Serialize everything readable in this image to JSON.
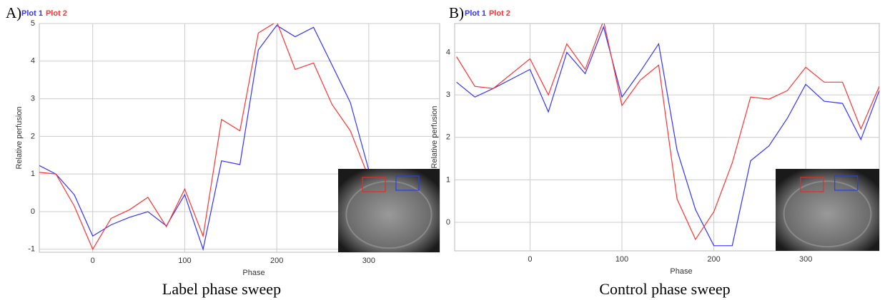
{
  "chart_data": [
    {
      "type": "line",
      "panel": "A)",
      "caption": "Label  phase  sweep",
      "x_label": "Phase",
      "y_label": "Relative perfusion",
      "x": [
        -60,
        -40,
        -20,
        0,
        20,
        40,
        60,
        80,
        100,
        120,
        140,
        160,
        180,
        200,
        220,
        240,
        260,
        280,
        300
      ],
      "series": [
        {
          "name": "Plot 1",
          "color": "#3333ff",
          "values": [
            1.25,
            1.0,
            0.45,
            -0.65,
            -0.35,
            -0.15,
            0.0,
            -0.38,
            0.45,
            -1.0,
            1.35,
            1.25,
            4.3,
            4.95,
            4.65,
            4.9,
            3.9,
            2.9,
            1.1
          ]
        },
        {
          "name": "Plot 2",
          "color": "#ff3333",
          "values": [
            1.05,
            1.0,
            0.15,
            -1.0,
            -0.18,
            0.05,
            0.38,
            -0.4,
            0.6,
            -0.65,
            2.45,
            2.15,
            4.75,
            5.05,
            3.78,
            3.95,
            2.85,
            2.15,
            0.9
          ]
        }
      ],
      "xlim": [
        -58,
        377
      ],
      "ylim": [
        -1.08,
        5
      ],
      "xticks": [
        0,
        100,
        200,
        300
      ],
      "yticks": [
        -1,
        0,
        1,
        2,
        3,
        4,
        5
      ],
      "grid": true
    },
    {
      "type": "line",
      "panel": "B)",
      "caption": "Control  phase  sweep",
      "x_label": "Phase",
      "y_label": "Relative perfusion",
      "x": [
        -80,
        -60,
        -40,
        0,
        20,
        40,
        60,
        80,
        100,
        120,
        140,
        160,
        180,
        200,
        220,
        240,
        260,
        280,
        300,
        320,
        340,
        360,
        380
      ],
      "series": [
        {
          "name": "Plot 1",
          "color": "#3333ff",
          "values": [
            3.3,
            2.95,
            3.15,
            3.6,
            2.6,
            4.0,
            3.5,
            4.6,
            2.95,
            3.55,
            4.2,
            1.7,
            0.3,
            -0.55,
            -0.55,
            1.45,
            1.8,
            2.45,
            3.25,
            2.85,
            2.8,
            1.95,
            3.1
          ]
        },
        {
          "name": "Plot 2",
          "color": "#ff3333",
          "values": [
            3.9,
            3.2,
            3.15,
            3.85,
            3.0,
            4.2,
            3.6,
            4.75,
            2.75,
            3.35,
            3.7,
            0.55,
            -0.4,
            0.25,
            1.4,
            2.95,
            2.9,
            3.1,
            3.65,
            3.3,
            3.3,
            2.2,
            3.2
          ]
        }
      ],
      "xlim": [
        -82,
        380
      ],
      "ylim": [
        -0.67,
        4.68
      ],
      "xticks": [
        0,
        100,
        200,
        300
      ],
      "yticks": [
        0,
        1,
        2,
        3,
        4
      ],
      "grid": true
    }
  ]
}
